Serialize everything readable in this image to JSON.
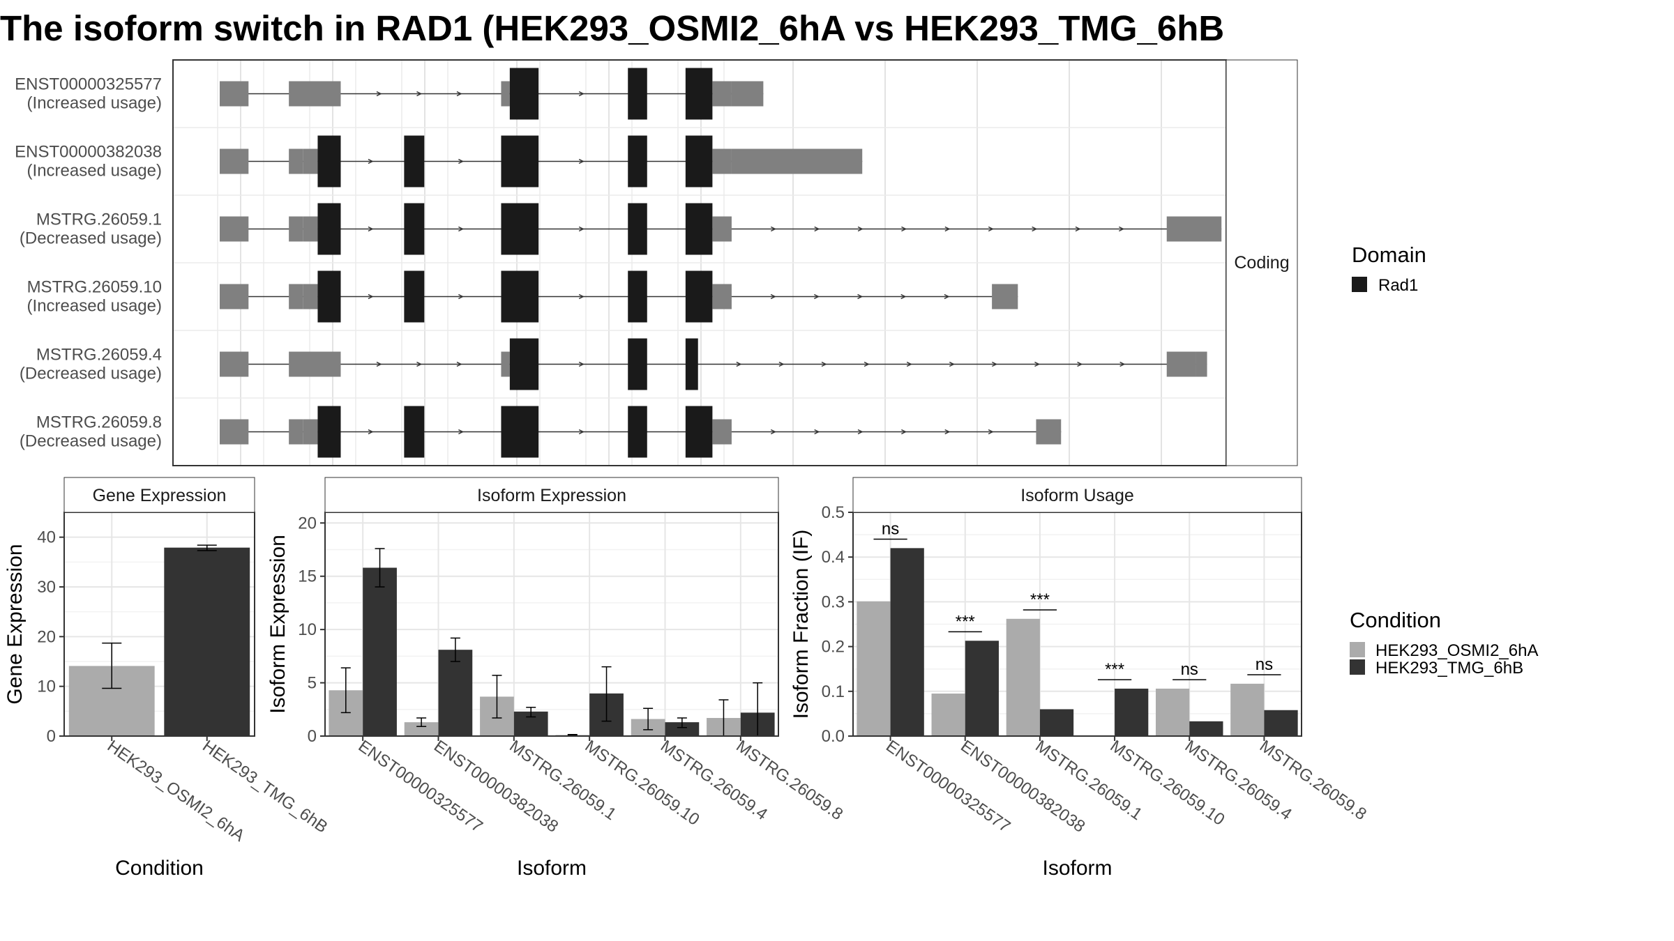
{
  "title": "The isoform switch in RAD1 (HEK293_OSMI2_6hA vs HEK293_TMG_6hB",
  "colors": {
    "utr": "#808080",
    "cds": "#1a1a1a",
    "cond_a": "#ababab",
    "cond_b": "#333333"
  },
  "chart_data": [
    {
      "type": "gene-structure",
      "strip_label": "Coding",
      "x_range": [
        0,
        1000
      ],
      "transcripts": [
        {
          "id": "ENST00000325577",
          "note": "(Increased usage)",
          "exons": [
            [
              0,
              30,
              "utr"
            ],
            [
              72,
              126,
              "utr"
            ],
            [
              293,
              302,
              "utr"
            ],
            [
              302,
              332,
              "cds"
            ],
            [
              425,
              445,
              "cds"
            ],
            [
              485,
              513,
              "cds"
            ],
            [
              513,
              533,
              "utr"
            ],
            [
              533,
              566,
              "utr"
            ]
          ]
        },
        {
          "id": "ENST00000382038",
          "note": "(Increased usage)",
          "exons": [
            [
              0,
              30,
              "utr"
            ],
            [
              72,
              87,
              "utr"
            ],
            [
              87,
              102,
              "utr"
            ],
            [
              102,
              126,
              "cds"
            ],
            [
              192,
              213,
              "cds"
            ],
            [
              293,
              332,
              "cds"
            ],
            [
              425,
              445,
              "cds"
            ],
            [
              485,
              513,
              "cds"
            ],
            [
              513,
              533,
              "utr"
            ],
            [
              533,
              669,
              "utr"
            ]
          ]
        },
        {
          "id": "MSTRG.26059.1",
          "note": "(Decreased usage)",
          "exons": [
            [
              0,
              30,
              "utr"
            ],
            [
              72,
              87,
              "utr"
            ],
            [
              87,
              102,
              "utr"
            ],
            [
              102,
              126,
              "cds"
            ],
            [
              192,
              213,
              "cds"
            ],
            [
              293,
              332,
              "cds"
            ],
            [
              425,
              445,
              "cds"
            ],
            [
              485,
              513,
              "cds"
            ],
            [
              513,
              533,
              "utr"
            ],
            [
              986,
              1043,
              "utr"
            ]
          ]
        },
        {
          "id": "MSTRG.26059.10",
          "note": "(Increased usage)",
          "exons": [
            [
              0,
              30,
              "utr"
            ],
            [
              72,
              87,
              "utr"
            ],
            [
              87,
              102,
              "utr"
            ],
            [
              102,
              126,
              "cds"
            ],
            [
              192,
              213,
              "cds"
            ],
            [
              293,
              332,
              "cds"
            ],
            [
              425,
              445,
              "cds"
            ],
            [
              485,
              513,
              "cds"
            ],
            [
              513,
              533,
              "utr"
            ],
            [
              804,
              831,
              "utr"
            ]
          ]
        },
        {
          "id": "MSTRG.26059.4",
          "note": "(Decreased usage)",
          "exons": [
            [
              0,
              30,
              "utr"
            ],
            [
              72,
              126,
              "utr"
            ],
            [
              293,
              302,
              "utr"
            ],
            [
              302,
              332,
              "cds"
            ],
            [
              425,
              445,
              "cds"
            ],
            [
              485,
              498,
              "cds"
            ],
            [
              986,
              1016,
              "utr"
            ],
            [
              1016,
              1028,
              "utr"
            ]
          ]
        },
        {
          "id": "MSTRG.26059.8",
          "note": "(Decreased usage)",
          "exons": [
            [
              0,
              30,
              "utr"
            ],
            [
              72,
              87,
              "utr"
            ],
            [
              87,
              102,
              "utr"
            ],
            [
              102,
              126,
              "cds"
            ],
            [
              192,
              213,
              "cds"
            ],
            [
              293,
              332,
              "cds"
            ],
            [
              425,
              445,
              "cds"
            ],
            [
              485,
              513,
              "cds"
            ],
            [
              513,
              533,
              "utr"
            ],
            [
              850,
              876,
              "utr"
            ]
          ]
        }
      ],
      "legend": {
        "title": "Domain",
        "items": [
          "Rad1"
        ]
      }
    },
    {
      "type": "bar",
      "title": "Gene Expression",
      "xlabel": "Condition",
      "ylabel": "Gene Expression",
      "ylim": [
        0,
        45
      ],
      "yticks": [
        0,
        10,
        20,
        30,
        40
      ],
      "categories": [
        "HEK293_OSMI2_6hA",
        "HEK293_TMG_6hB"
      ],
      "values": [
        14.1,
        37.9
      ],
      "errors": [
        [
          9.6,
          18.7
        ],
        [
          37.3,
          38.4
        ]
      ]
    },
    {
      "type": "bar",
      "title": "Isoform Expression",
      "xlabel": "Isoform",
      "ylabel": "Isoform Expression",
      "ylim": [
        0,
        21
      ],
      "yticks": [
        0,
        5,
        10,
        15,
        20
      ],
      "categories": [
        "ENST00000325577",
        "ENST00000382038",
        "MSTRG.26059.1",
        "MSTRG.26059.10",
        "MSTRG.26059.4",
        "MSTRG.26059.8"
      ],
      "series": [
        {
          "name": "HEK293_OSMI2_6hA",
          "values": [
            4.3,
            1.3,
            3.7,
            0.1,
            1.6,
            1.7
          ],
          "errors": [
            [
              2.2,
              6.4
            ],
            [
              0.9,
              1.7
            ],
            [
              1.7,
              5.7
            ],
            [
              0.05,
              0.15
            ],
            [
              0.6,
              2.6
            ],
            [
              0.0,
              3.4
            ]
          ]
        },
        {
          "name": "HEK293_TMG_6hB",
          "values": [
            15.8,
            8.1,
            2.3,
            4.0,
            1.3,
            2.2
          ],
          "errors": [
            [
              14.0,
              17.6
            ],
            [
              7.0,
              9.2
            ],
            [
              1.8,
              2.7
            ],
            [
              1.4,
              6.5
            ],
            [
              0.8,
              1.7
            ],
            [
              0.0,
              5.0
            ]
          ]
        }
      ]
    },
    {
      "type": "bar",
      "title": "Isoform Usage",
      "xlabel": "Isoform",
      "ylabel": "Isoform Fraction (IF)",
      "ylim": [
        0,
        0.5
      ],
      "yticks": [
        "0.0",
        "0.1",
        "0.2",
        "0.3",
        "0.4",
        "0.5"
      ],
      "categories": [
        "ENST00000325577",
        "ENST00000382038",
        "MSTRG.26059.1",
        "MSTRG.26059.10",
        "MSTRG.26059.4",
        "MSTRG.26059.8"
      ],
      "series": [
        {
          "name": "HEK293_OSMI2_6hA",
          "values": [
            0.301,
            0.095,
            0.262,
            0.0,
            0.106,
            0.117
          ]
        },
        {
          "name": "HEK293_TMG_6hB",
          "values": [
            0.42,
            0.213,
            0.06,
            0.106,
            0.033,
            0.058
          ]
        }
      ],
      "significance": [
        {
          "label": "ns",
          "y": 0.44
        },
        {
          "label": "***",
          "y": 0.233
        },
        {
          "label": "***",
          "y": 0.282
        },
        {
          "label": "***",
          "y": 0.126
        },
        {
          "label": "ns",
          "y": 0.126
        },
        {
          "label": "ns",
          "y": 0.137
        }
      ]
    }
  ],
  "legend_condition": {
    "title": "Condition",
    "items": [
      "HEK293_OSMI2_6hA",
      "HEK293_TMG_6hB"
    ]
  }
}
